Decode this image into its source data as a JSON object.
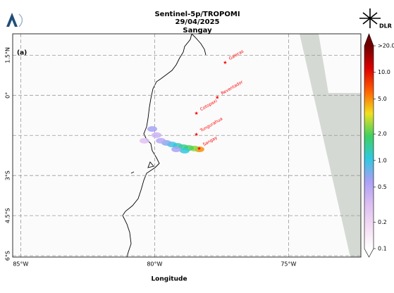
{
  "header": {
    "title_lines": [
      "Sentinel-5p/TROPOMI",
      "29/04/2025",
      "Sangay"
    ],
    "logo_text": "DLR"
  },
  "map": {
    "panel_label": "(a)",
    "xlabel": "Longitude",
    "xlim": [
      -85.3,
      -72.3
    ],
    "ylim": [
      -6.05,
      2.3
    ],
    "xticks": [
      {
        "value": -85,
        "label": "85°W"
      },
      {
        "value": -80,
        "label": "80°W"
      },
      {
        "value": -75,
        "label": "75°W"
      }
    ],
    "yticks": [
      {
        "value": 1.5,
        "label": "1.5°N"
      },
      {
        "value": 0,
        "label": "0°"
      },
      {
        "value": -1.5,
        "label": null
      },
      {
        "value": -3,
        "label": "3°S"
      },
      {
        "value": -4.5,
        "label": "4.5°S"
      },
      {
        "value": -6,
        "label": "6°S"
      }
    ],
    "grid": true,
    "volcano_color": "#ff0000",
    "volcanoes": [
      {
        "name": "Galeras",
        "lon": -77.37,
        "lat": 1.22
      },
      {
        "name": "Reventador",
        "lon": -77.66,
        "lat": -0.08
      },
      {
        "name": "Cotopaxi",
        "lon": -78.44,
        "lat": -0.68
      },
      {
        "name": "Tungurahua",
        "lon": -78.44,
        "lat": -1.47
      },
      {
        "name": "Sangay",
        "lon": -78.34,
        "lat": -2.0
      }
    ],
    "plume": [
      {
        "lon": -78.33,
        "lat": -2.02,
        "value": 5
      },
      {
        "lon": -78.51,
        "lat": -1.99,
        "value": 2.5
      },
      {
        "lon": -78.72,
        "lat": -1.97,
        "value": 2
      },
      {
        "lon": -78.93,
        "lat": -1.94,
        "value": 1.6
      },
      {
        "lon": -78.88,
        "lat": -2.07,
        "value": 1.1
      },
      {
        "lon": -79.14,
        "lat": -1.89,
        "value": 1.3
      },
      {
        "lon": -79.35,
        "lat": -1.84,
        "value": 1.0
      },
      {
        "lon": -79.19,
        "lat": -2.02,
        "value": 0.6
      },
      {
        "lon": -79.56,
        "lat": -1.78,
        "value": 0.7
      },
      {
        "lon": -79.77,
        "lat": -1.7,
        "value": 0.5
      },
      {
        "lon": -79.93,
        "lat": -1.49,
        "value": 0.4
      },
      {
        "lon": -80.09,
        "lat": -1.26,
        "value": 0.6
      },
      {
        "lon": -80.38,
        "lat": -1.7,
        "value": 0.3
      }
    ]
  },
  "colorbar": {
    "scale": "log",
    "lim": [
      0.1,
      20
    ],
    "ticks": [
      {
        "value": 20,
        "label": ">20.0"
      },
      {
        "value": 10,
        "label": "10.0"
      },
      {
        "value": 5,
        "label": "5.0"
      },
      {
        "value": 2,
        "label": "2.0"
      },
      {
        "value": 1,
        "label": "1.0"
      },
      0.5,
      0.2,
      0.1
    ],
    "colors": [
      "#ffffff",
      "#f3dcf3",
      "#dcbdf2",
      "#a9a0f5",
      "#30c8e0",
      "#40d060",
      "#f0e020",
      "#ff6000",
      "#dd0000",
      "#700000"
    ]
  }
}
